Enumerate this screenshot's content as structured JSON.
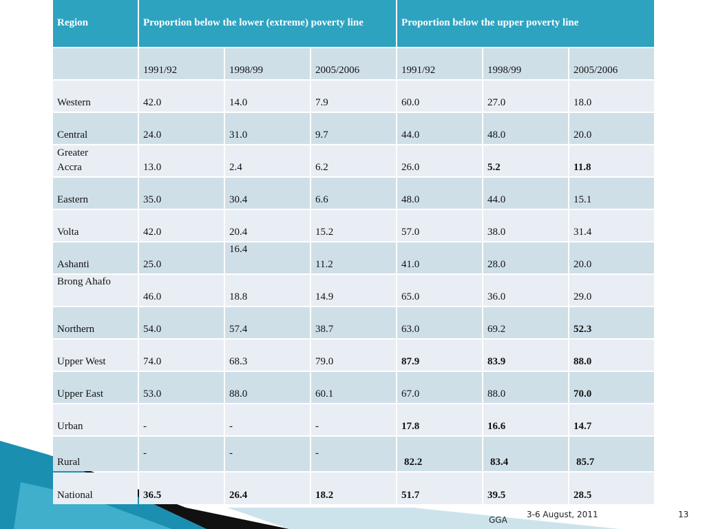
{
  "header": {
    "region": "Region",
    "lower": "Proportion below the lower (extreme) poverty line",
    "upper": "Proportion below the upper poverty line"
  },
  "years": [
    "1991/92",
    "1998/99",
    "2005/2006",
    "1991/92",
    "1998/99",
    "2005/2006"
  ],
  "rows": [
    {
      "region": "Western",
      "values": [
        "42.0",
        "14.0",
        "7.9",
        "60.0",
        "27.0",
        "18.0"
      ],
      "bold": []
    },
    {
      "region": "Central",
      "values": [
        "24.0",
        "31.0",
        "9.7",
        "44.0",
        "48.0",
        "20.0"
      ],
      "bold": []
    },
    {
      "region": "Greater Accra",
      "values": [
        "13.0",
        "2.4",
        "6.2",
        "26.0",
        "5.2",
        "11.8"
      ],
      "bold": [
        4,
        5
      ]
    },
    {
      "region": "Eastern",
      "values": [
        "35.0",
        "30.4",
        "6.6",
        "48.0",
        "44.0",
        "15.1"
      ],
      "bold": []
    },
    {
      "region": "Volta",
      "values": [
        "42.0",
        "20.4",
        "15.2",
        "57.0",
        "38.0",
        "31.4"
      ],
      "bold": []
    },
    {
      "region": "Ashanti",
      "values": [
        "25.0",
        "16.4",
        "11.2",
        "41.0",
        "28.0",
        "20.0"
      ],
      "bold": []
    },
    {
      "region": "Brong Ahafo",
      "values": [
        "46.0",
        "18.8",
        "14.9",
        "65.0",
        "36.0",
        "29.0"
      ],
      "bold": []
    },
    {
      "region": "Northern",
      "values": [
        "54.0",
        "57.4",
        "38.7",
        "63.0",
        "69.2",
        "52.3"
      ],
      "bold": [
        5
      ]
    },
    {
      "region": "Upper West",
      "values": [
        "74.0",
        "68.3",
        "79.0",
        "87.9",
        "83.9",
        "88.0"
      ],
      "bold": [
        3,
        4,
        5
      ]
    },
    {
      "region": "Upper East",
      "values": [
        "53.0",
        "88.0",
        "60.1",
        "67.0",
        "88.0",
        "70.0"
      ],
      "bold": [
        5
      ]
    },
    {
      "region": "Urban",
      "values": [
        "-",
        "-",
        "-",
        "17.8",
        "16.6",
        "14.7"
      ],
      "bold": [
        3,
        4,
        5
      ]
    },
    {
      "region": "Rural",
      "values": [
        "-",
        "-",
        "-",
        "82.2",
        "83.4",
        "85.7"
      ],
      "bold": [
        3,
        4,
        5
      ]
    },
    {
      "region": "National",
      "values": [
        "36.5",
        "26.4",
        "18.2",
        "51.7",
        "39.5",
        "28.5"
      ],
      "bold": [
        0,
        1,
        2,
        3,
        4,
        5
      ]
    }
  ],
  "footer": {
    "org": "GGA",
    "date": "3-6 August, 2011",
    "page": "13"
  }
}
